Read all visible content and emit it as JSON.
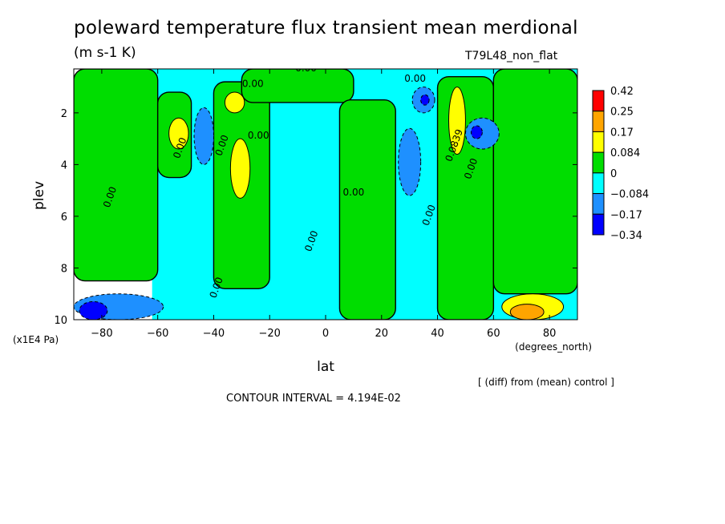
{
  "header": {
    "title": "poleward temperature flux transient mean merdional",
    "units": "(m s-1 K)",
    "run_name": "T79L48_non_flat",
    "diff_note": "[ (diff) from (mean) control ]",
    "contour_interval": "CONTOUR INTERVAL = 4.194E-02"
  },
  "chart_data": {
    "type": "heatmap",
    "xlabel": "lat",
    "xunits": "(degrees_north)",
    "ylabel": "plev",
    "yunits": "(x1E4 Pa)",
    "xlim": [
      -90,
      90
    ],
    "ylim": [
      10,
      0.3
    ],
    "x_ticks": [
      -80,
      -60,
      -40,
      -20,
      0,
      20,
      40,
      60,
      80
    ],
    "y_ticks": [
      2,
      4,
      6,
      8,
      10
    ],
    "legend_position": "right",
    "colorbar": {
      "levels": [
        "0.42",
        "0.25",
        "0.17",
        "0.084",
        "0",
        "−0.084",
        "−0.17",
        "−0.34"
      ],
      "colors": [
        "#ff0000",
        "#ffa500",
        "#ffff00",
        "#00dd00",
        "#00ffff",
        "#1e90ff",
        "#0000ff"
      ]
    },
    "contour_labels": [
      {
        "text": "0.00",
        "lat": -7,
        "plev": 0.4
      },
      {
        "text": "0.00",
        "lat": -26,
        "plev": 1.0
      },
      {
        "text": "0.00",
        "lat": 32,
        "plev": 0.8
      },
      {
        "text": "0.00",
        "lat": -51,
        "plev": 3.4
      },
      {
        "text": "0.00",
        "lat": -36,
        "plev": 3.3
      },
      {
        "text": "0.00",
        "lat": -24,
        "plev": 3.0
      },
      {
        "text": "0.00",
        "lat": -76,
        "plev": 5.3
      },
      {
        "text": "0.00",
        "lat": -38,
        "plev": 8.8
      },
      {
        "text": "0.00",
        "lat": -4,
        "plev": 7.0
      },
      {
        "text": "0.00",
        "lat": 10,
        "plev": 5.2
      },
      {
        "text": "0.00",
        "lat": 38,
        "plev": 6.0
      },
      {
        "text": "0.0839",
        "lat": 47,
        "plev": 3.3
      },
      {
        "text": "0.00",
        "lat": 53,
        "plev": 4.2
      }
    ],
    "regions": [
      {
        "sign": "neg",
        "level": 1,
        "lat": [
          -62,
          90
        ],
        "plev": [
          0.3,
          10
        ]
      },
      {
        "sign": "pos",
        "level": 1,
        "lat": [
          -90,
          -60
        ],
        "plev": [
          0.3,
          8.5
        ]
      },
      {
        "sign": "pos",
        "level": 1,
        "lat": [
          -60,
          -48
        ],
        "plev": [
          1.2,
          4.5
        ]
      },
      {
        "sign": "pos",
        "level": 1,
        "lat": [
          -40,
          -20
        ],
        "plev": [
          0.8,
          8.8
        ]
      },
      {
        "sign": "pos",
        "level": 1,
        "lat": [
          -30,
          10
        ],
        "plev": [
          0.3,
          1.6
        ]
      },
      {
        "sign": "pos",
        "level": 1,
        "lat": [
          5,
          25
        ],
        "plev": [
          1.5,
          10
        ]
      },
      {
        "sign": "pos",
        "level": 1,
        "lat": [
          40,
          60
        ],
        "plev": [
          0.6,
          10
        ]
      },
      {
        "sign": "pos",
        "level": 1,
        "lat": [
          60,
          90
        ],
        "plev": [
          0.3,
          9
        ]
      },
      {
        "sign": "pos",
        "level": 2,
        "lat": [
          -56,
          -49
        ],
        "plev": [
          2.2,
          3.4
        ]
      },
      {
        "sign": "pos",
        "level": 2,
        "lat": [
          -34,
          -27
        ],
        "plev": [
          3.0,
          5.3
        ]
      },
      {
        "sign": "pos",
        "level": 2,
        "lat": [
          -36,
          -29
        ],
        "plev": [
          1.2,
          2.0
        ]
      },
      {
        "sign": "pos",
        "level": 2,
        "lat": [
          44,
          50
        ],
        "plev": [
          1.0,
          3.6
        ]
      },
      {
        "sign": "pos",
        "level": 2,
        "lat": [
          63,
          85
        ],
        "plev": [
          9.0,
          10
        ]
      },
      {
        "sign": "pos",
        "level": 3,
        "lat": [
          66,
          78
        ],
        "plev": [
          9.4,
          10
        ]
      },
      {
        "sign": "neg",
        "level": 2,
        "lat": [
          -90,
          -58
        ],
        "plev": [
          9.0,
          10
        ]
      },
      {
        "sign": "neg",
        "level": 2,
        "lat": [
          -47,
          -40
        ],
        "plev": [
          1.8,
          4.0
        ]
      },
      {
        "sign": "neg",
        "level": 2,
        "lat": [
          26,
          34
        ],
        "plev": [
          2.6,
          5.2
        ]
      },
      {
        "sign": "neg",
        "level": 2,
        "lat": [
          31,
          39
        ],
        "plev": [
          1.0,
          2.0
        ]
      },
      {
        "sign": "neg",
        "level": 2,
        "lat": [
          50,
          62
        ],
        "plev": [
          2.2,
          3.4
        ]
      },
      {
        "sign": "neg",
        "level": 3,
        "lat": [
          -88,
          -78
        ],
        "plev": [
          9.3,
          10
        ]
      },
      {
        "sign": "neg",
        "level": 3,
        "lat": [
          52,
          56
        ],
        "plev": [
          2.5,
          3.0
        ]
      },
      {
        "sign": "neg",
        "level": 3,
        "lat": [
          34,
          37
        ],
        "plev": [
          1.3,
          1.7
        ]
      }
    ]
  }
}
